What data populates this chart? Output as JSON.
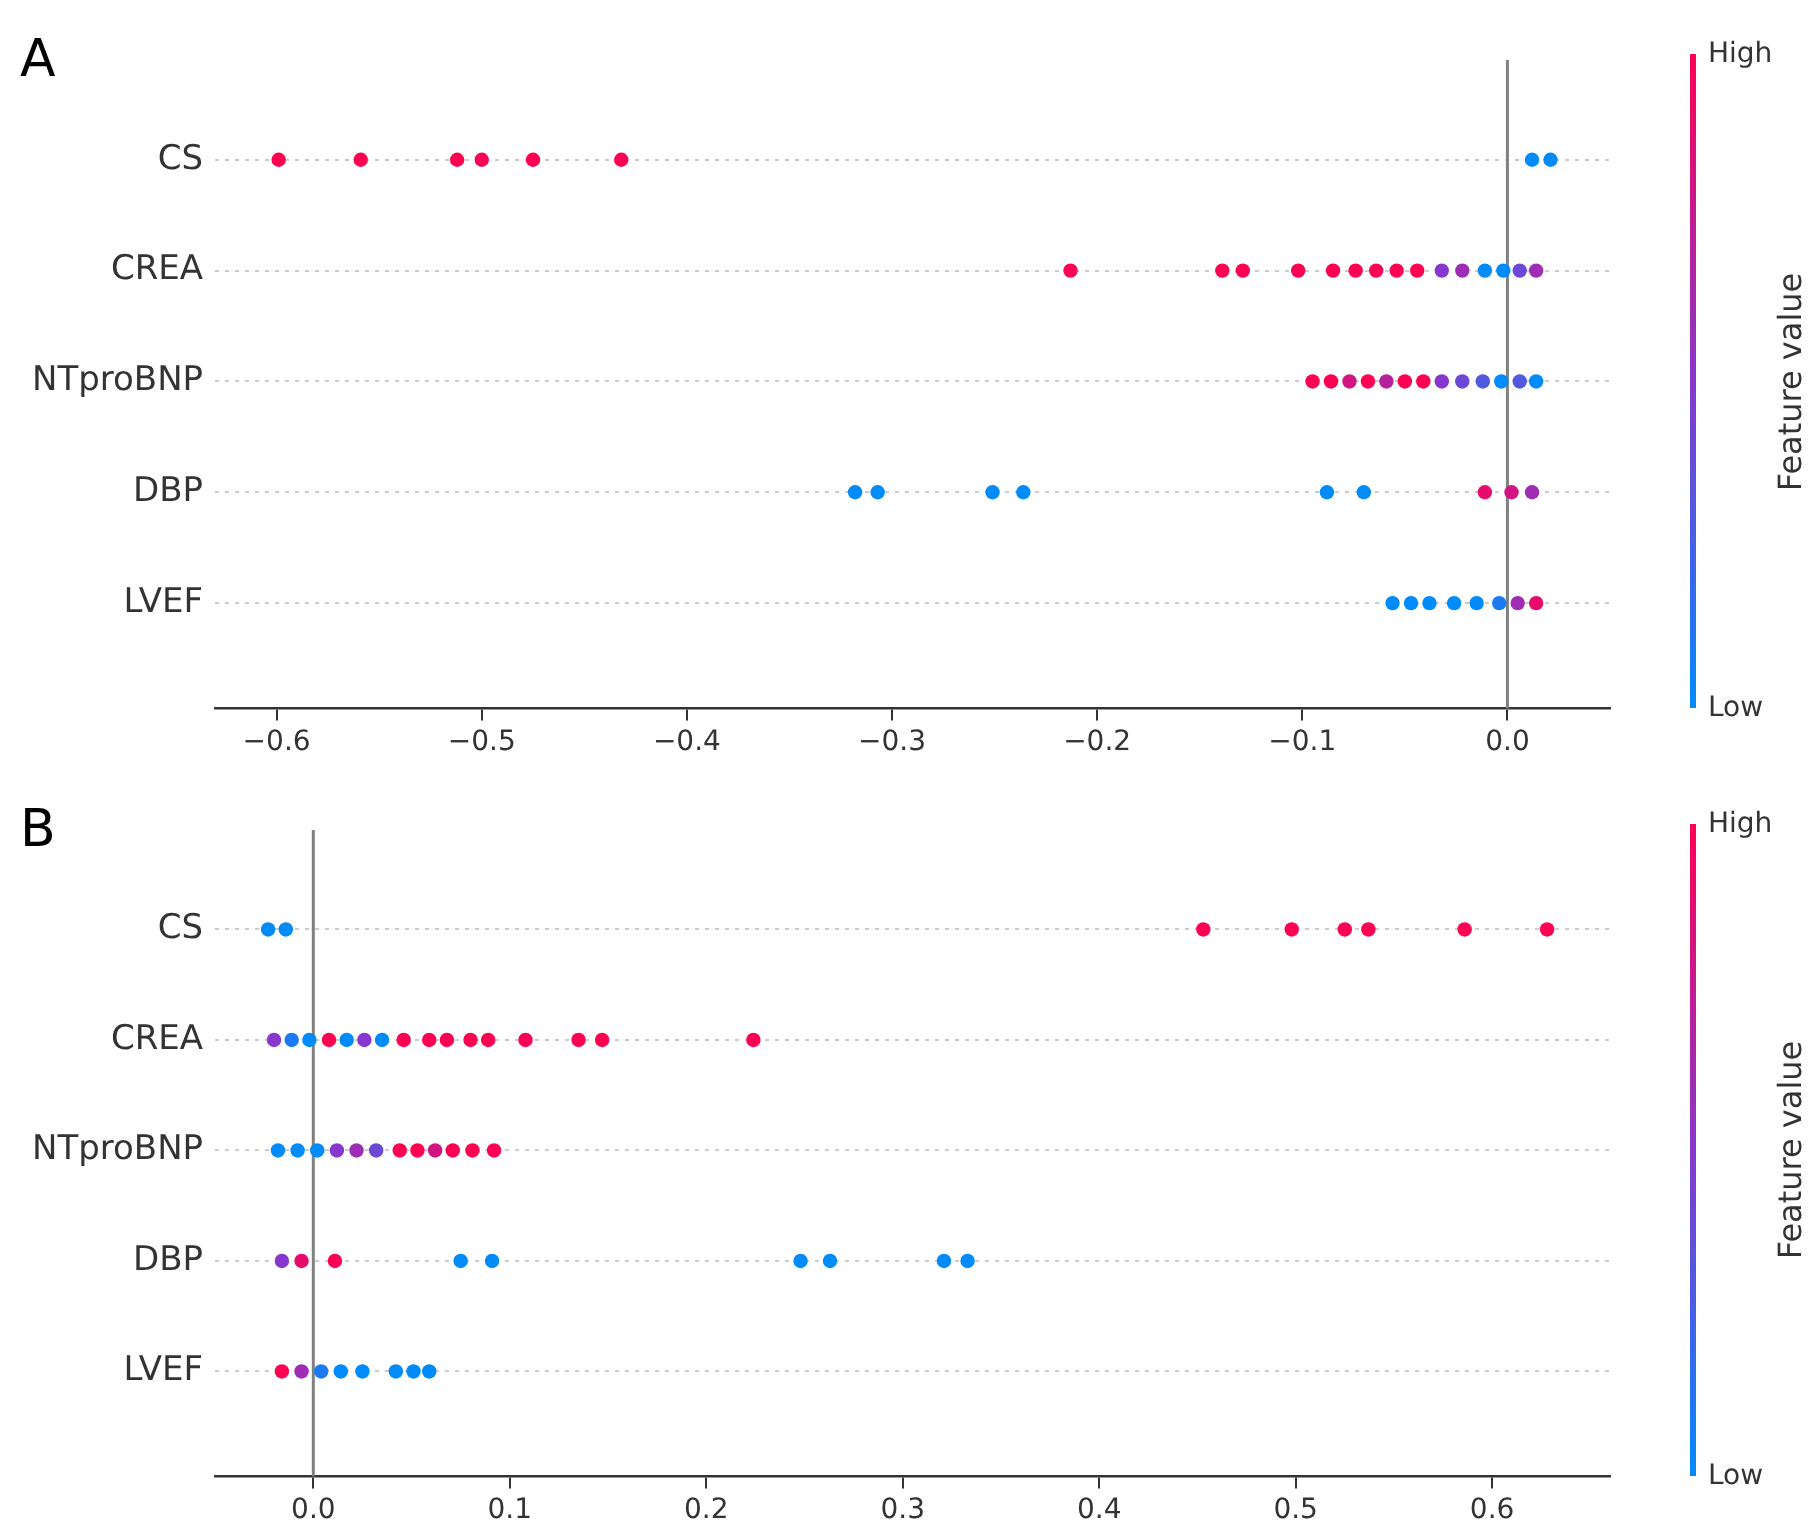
{
  "chart_data": [
    {
      "type": "scatter",
      "title": "A",
      "orientation": "horizontal",
      "categories": [
        "CS",
        "CREA",
        "NTproBNP",
        "DBP",
        "LVEF"
      ],
      "series": [
        {
          "x": [
            "CS",
            "CS",
            "CS",
            "CS",
            "CS",
            "CS",
            "CS",
            "CS"
          ],
          "values": [
            -0.599,
            -0.559,
            -0.512,
            -0.5,
            -0.475,
            -0.432,
            0.012,
            0.021
          ],
          "colors": [
            "#ff0052",
            "#ff0052",
            "#ff0052",
            "#ff0052",
            "#ff0052",
            "#ff0052",
            "#008bfb",
            "#008bfb"
          ]
        },
        {
          "x": [
            "CREA",
            "CREA",
            "CREA",
            "CREA",
            "CREA",
            "CREA",
            "CREA",
            "CREA",
            "CREA",
            "CREA",
            "CREA",
            "CREA",
            "CREA",
            "CREA",
            "CREA"
          ],
          "values": [
            -0.213,
            -0.139,
            -0.129,
            -0.102,
            -0.085,
            -0.074,
            -0.064,
            -0.054,
            -0.044,
            -0.032,
            -0.022,
            -0.011,
            -0.002,
            0.006,
            0.014
          ],
          "colors": [
            "#ff0052",
            "#ff0052",
            "#ff0052",
            "#ff0052",
            "#ff0052",
            "#ff0052",
            "#ff0052",
            "#ff0052",
            "#ff0052",
            "#8737cd",
            "#9f2cb4",
            "#008bfb",
            "#008bfb",
            "#6c48d6",
            "#9f2cb4"
          ]
        },
        {
          "x": [
            "NTproBNP",
            "NTproBNP",
            "NTproBNP",
            "NTproBNP",
            "NTproBNP",
            "NTproBNP",
            "NTproBNP",
            "NTproBNP",
            "NTproBNP",
            "NTproBNP",
            "NTproBNP",
            "NTproBNP",
            "NTproBNP"
          ],
          "values": [
            -0.095,
            -0.086,
            -0.077,
            -0.068,
            -0.059,
            -0.05,
            -0.041,
            -0.032,
            -0.022,
            -0.012,
            -0.003,
            0.006,
            0.014
          ],
          "colors": [
            "#ff0052",
            "#ff0052",
            "#cf1683",
            "#ff0052",
            "#b7219c",
            "#ff0052",
            "#ff0052",
            "#8737cd",
            "#6c48d6",
            "#5159df",
            "#008bfb",
            "#5159df",
            "#008bfb"
          ]
        },
        {
          "x": [
            "DBP",
            "DBP",
            "DBP",
            "DBP",
            "DBP",
            "DBP",
            "DBP",
            "DBP",
            "DBP"
          ],
          "values": [
            -0.318,
            -0.307,
            -0.251,
            -0.236,
            -0.088,
            -0.07,
            -0.011,
            0.002,
            0.012
          ],
          "colors": [
            "#008bfb",
            "#008bfb",
            "#008bfb",
            "#008bfb",
            "#008bfb",
            "#008bfb",
            "#e70b6b",
            "#cf1683",
            "#9f2cb4"
          ]
        },
        {
          "x": [
            "LVEF",
            "LVEF",
            "LVEF",
            "LVEF",
            "LVEF",
            "LVEF",
            "LVEF",
            "LVEF"
          ],
          "values": [
            -0.056,
            -0.047,
            -0.038,
            -0.026,
            -0.015,
            -0.004,
            0.005,
            0.014
          ],
          "colors": [
            "#008bfb",
            "#008bfb",
            "#008bfb",
            "#008bfb",
            "#008bfb",
            "#1b7af2",
            "#9f2cb4",
            "#e70b6b"
          ]
        }
      ],
      "xlim": [
        -0.63,
        0.05
      ],
      "xticks": [
        {
          "value": -0.6,
          "label": "−0.6"
        },
        {
          "value": -0.5,
          "label": "−0.5"
        },
        {
          "value": -0.4,
          "label": "−0.4"
        },
        {
          "value": -0.3,
          "label": "−0.3"
        },
        {
          "value": -0.2,
          "label": "−0.2"
        },
        {
          "value": -0.1,
          "label": "−0.1"
        },
        {
          "value": 0,
          "label": "0.0"
        }
      ],
      "ref_lines": [
        {
          "axis": "x",
          "value": 0,
          "color": "#808080"
        }
      ],
      "grid": "y",
      "clabel": "Feature value",
      "annotations": [
        "High",
        "Low"
      ]
    },
    {
      "type": "scatter",
      "title": "B",
      "orientation": "horizontal",
      "categories": [
        "CS",
        "CREA",
        "NTproBNP",
        "DBP",
        "LVEF"
      ],
      "series": [
        {
          "x": [
            "CS",
            "CS",
            "CS",
            "CS",
            "CS",
            "CS",
            "CS",
            "CS"
          ],
          "values": [
            -0.023,
            -0.014,
            0.453,
            0.498,
            0.525,
            0.537,
            0.586,
            0.628
          ],
          "colors": [
            "#008bfb",
            "#008bfb",
            "#ff0052",
            "#ff0052",
            "#ff0052",
            "#ff0052",
            "#ff0052",
            "#ff0052"
          ]
        },
        {
          "x": [
            "CREA",
            "CREA",
            "CREA",
            "CREA",
            "CREA",
            "CREA",
            "CREA",
            "CREA",
            "CREA",
            "CREA",
            "CREA",
            "CREA",
            "CREA",
            "CREA",
            "CREA",
            "CREA"
          ],
          "values": [
            -0.02,
            -0.011,
            -0.002,
            0.008,
            0.017,
            0.026,
            0.035,
            0.046,
            0.059,
            0.068,
            0.08,
            0.089,
            0.108,
            0.135,
            0.147,
            0.224
          ],
          "colors": [
            "#8737cd",
            "#1b7af2",
            "#008bfb",
            "#ff0052",
            "#008bfb",
            "#8737cd",
            "#008bfb",
            "#ff0052",
            "#ff0052",
            "#ff0052",
            "#ff0052",
            "#ff0052",
            "#ff0052",
            "#ff0052",
            "#ff0052",
            "#ff0052"
          ]
        },
        {
          "x": [
            "NTproBNP",
            "NTproBNP",
            "NTproBNP",
            "NTproBNP",
            "NTproBNP",
            "NTproBNP",
            "NTproBNP",
            "NTproBNP",
            "NTproBNP",
            "NTproBNP",
            "NTproBNP",
            "NTproBNP"
          ],
          "values": [
            -0.018,
            -0.008,
            0.002,
            0.012,
            0.022,
            0.032,
            0.044,
            0.053,
            0.062,
            0.071,
            0.081,
            0.092
          ],
          "colors": [
            "#008bfb",
            "#008bfb",
            "#008bfb",
            "#8737cd",
            "#9f2cb4",
            "#6c48d6",
            "#ff0052",
            "#ff0052",
            "#cf1683",
            "#ff0052",
            "#ff0052",
            "#ff0052"
          ]
        },
        {
          "x": [
            "DBP",
            "DBP",
            "DBP",
            "DBP",
            "DBP",
            "DBP",
            "DBP",
            "DBP",
            "DBP"
          ],
          "values": [
            -0.016,
            -0.006,
            0.011,
            0.075,
            0.091,
            0.248,
            0.263,
            0.321,
            0.333
          ],
          "colors": [
            "#8737cd",
            "#e70b6b",
            "#ff0052",
            "#008bfb",
            "#008bfb",
            "#008bfb",
            "#008bfb",
            "#008bfb",
            "#008bfb"
          ]
        },
        {
          "x": [
            "LVEF",
            "LVEF",
            "LVEF",
            "LVEF",
            "LVEF",
            "LVEF",
            "LVEF",
            "LVEF"
          ],
          "values": [
            -0.016,
            -0.006,
            0.004,
            0.014,
            0.025,
            0.042,
            0.051,
            0.059
          ],
          "colors": [
            "#ff0052",
            "#9f2cb4",
            "#1b7af2",
            "#008bfb",
            "#008bfb",
            "#008bfb",
            "#008bfb",
            "#008bfb"
          ]
        }
      ],
      "xlim": [
        -0.05,
        0.66
      ],
      "xticks": [
        {
          "value": 0,
          "label": "0.0"
        },
        {
          "value": 0.1,
          "label": "0.1"
        },
        {
          "value": 0.2,
          "label": "0.2"
        },
        {
          "value": 0.3,
          "label": "0.3"
        },
        {
          "value": 0.4,
          "label": "0.4"
        },
        {
          "value": 0.5,
          "label": "0.5"
        },
        {
          "value": 0.6,
          "label": "0.6"
        }
      ],
      "ref_lines": [
        {
          "axis": "x",
          "value": 0,
          "color": "#808080"
        }
      ],
      "grid": "y",
      "clabel": "Feature value",
      "annotations": [
        "High",
        "Low"
      ]
    }
  ]
}
